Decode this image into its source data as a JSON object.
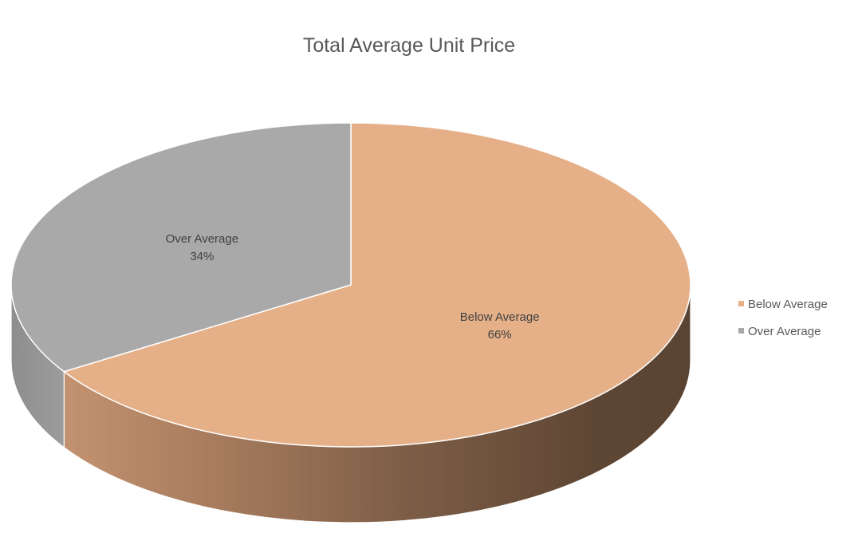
{
  "chart_data": {
    "type": "pie",
    "title": "Total Average Unit Price",
    "three_d": true,
    "legend_position": "right",
    "series": [
      {
        "categories": [
          "Below Average",
          "Over Average"
        ],
        "values": [
          66,
          34
        ],
        "data_labels": [
          "66%",
          "34%"
        ]
      }
    ],
    "colors": {
      "Below Average": "#E5B088",
      "Over Average": "#A9A9A9"
    }
  }
}
